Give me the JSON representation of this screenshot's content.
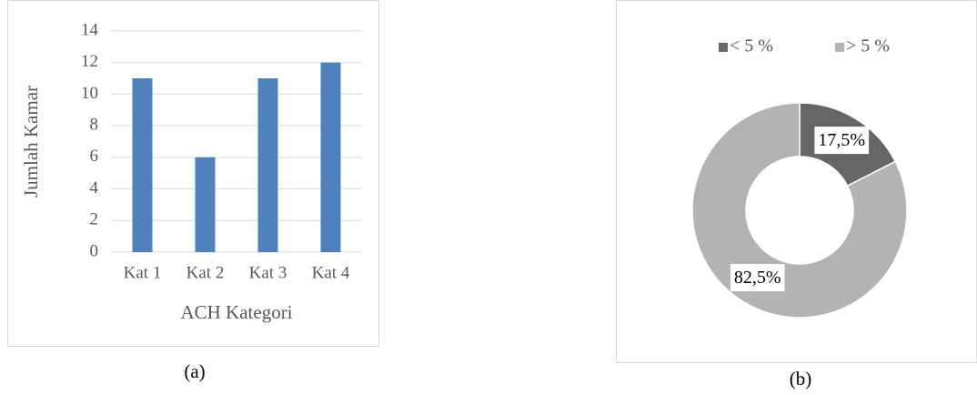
{
  "chart_data": [
    {
      "type": "bar",
      "categories": [
        "Kat 1",
        "Kat 2",
        "Kat 3",
        "Kat 4"
      ],
      "values": [
        11,
        6,
        11,
        12
      ],
      "color": "#4f81bd",
      "xlabel": "ACH Kategori",
      "ylabel": "Jumlah Kamar",
      "ylim": [
        0,
        14
      ],
      "yticks": [
        0,
        2,
        4,
        6,
        8,
        10,
        12,
        14
      ],
      "grid": true,
      "caption": "(a)"
    },
    {
      "type": "pie",
      "donut": true,
      "labels": [
        "< 5 %",
        "> 5 %"
      ],
      "values": [
        17.5,
        82.5
      ],
      "value_labels": [
        "17,5%",
        "82,5%"
      ],
      "colors": [
        "#666666",
        "#b3b3b3"
      ],
      "legend": "top",
      "caption": "(b)"
    }
  ]
}
